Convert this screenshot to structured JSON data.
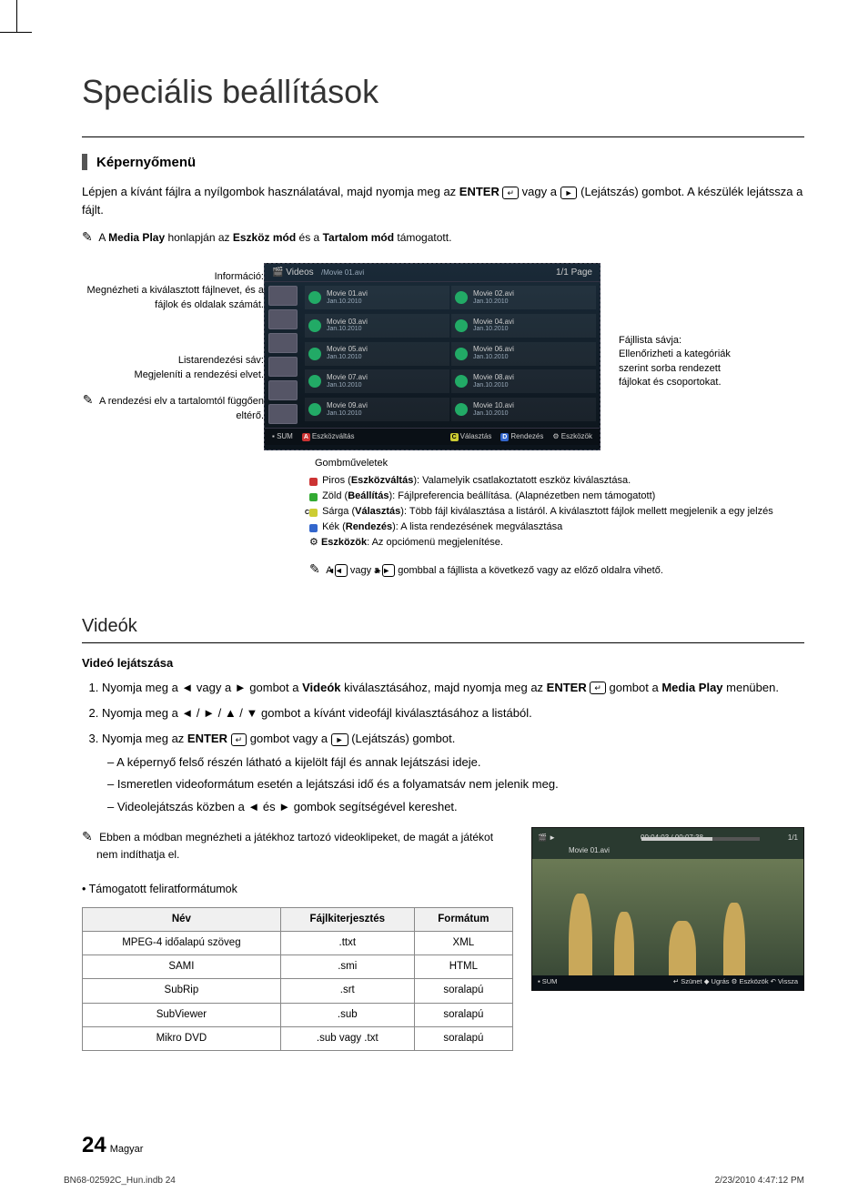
{
  "title": "Speciális beállítások",
  "section1_heading": "Képernyőmenü",
  "intro_text_a": "Lépjen a kívánt fájlra a nyílgombok használatával, majd nyomja meg az ",
  "intro_enter": "ENTER",
  "intro_text_b": " vagy a ",
  "intro_play_label": "►",
  "intro_text_c": " (Lejátszás) gombot. A készülék lejátssza a fájlt.",
  "note1_pre": "A ",
  "note1_mp": "Media Play",
  "note1_mid": " honlapján az ",
  "note1_em": "Eszköz mód",
  "note1_and": " és a ",
  "note1_tm": "Tartalom mód",
  "note1_post": " támogatott.",
  "callout_info_t": "Információ:",
  "callout_info_d": "Megnézheti a kiválasztott fájlnevet, és a fájlok és oldalak számát.",
  "callout_sort_t": "Listarendezési sáv:",
  "callout_sort_d": "Megjeleníti a rendezési elvet.",
  "callout_sort_note": "A rendezési elv a tartalomtól függően eltérő.",
  "callout_right_t": "Fájllista sávja:",
  "callout_right_d": "Ellenőrizheti a kategóriák szerint sorba rendezett fájlokat és csoportokat.",
  "ss_tab": "Videos",
  "ss_path": "/Movie 01.avi",
  "ss_page": "1/1 Page",
  "movies": [
    {
      "n": "Movie 01.avi",
      "d": "Jan.10.2010"
    },
    {
      "n": "Movie 02.avi",
      "d": "Jan.10.2010"
    },
    {
      "n": "Movie 03.avi",
      "d": "Jan.10.2010"
    },
    {
      "n": "Movie 04.avi",
      "d": "Jan.10.2010"
    },
    {
      "n": "Movie 05.avi",
      "d": "Jan.10.2010"
    },
    {
      "n": "Movie 06.avi",
      "d": "Jan.10.2010"
    },
    {
      "n": "Movie 07.avi",
      "d": "Jan.10.2010"
    },
    {
      "n": "Movie 08.avi",
      "d": "Jan.10.2010"
    },
    {
      "n": "Movie 09.avi",
      "d": "Jan.10.2010"
    },
    {
      "n": "Movie 10.avi",
      "d": "Jan.10.2010"
    }
  ],
  "ssf_sum": "SUM",
  "ssf_a": "Eszközváltás",
  "ssf_c": "Választás",
  "ssf_d": "Rendezés",
  "ssf_tools": "Eszközök",
  "ops_title": "Gombműveletek",
  "op_a_pre": "Piros (",
  "op_a_b": "Eszközváltás",
  "op_a_post": "): Valamelyik csatlakoztatott eszköz kiválasztása.",
  "op_b_pre": "Zöld (",
  "op_b_b": "Beállítás",
  "op_b_post": "): Fájlpreferencia beállítása. (Alapnézetben nem támogatott)",
  "op_c_pre": "Sárga (",
  "op_c_b": "Választás",
  "op_c_post": "): Több fájl kiválasztása a listáról. A kiválasztott fájlok mellett megjelenik a egy jelzés",
  "op_d_pre": "Kék (",
  "op_d_b": "Rendezés",
  "op_d_post": "): A lista rendezésének megválasztása",
  "op_t_b": "Eszközök",
  "op_t_post": ": Az opciómenü megjelenítése.",
  "pagenote_pre": "A ",
  "pagenote_mid": " vagy a ",
  "pagenote_post": " gombbal a fájllista a következő vagy az előző oldalra vihető.",
  "videos_h": "Videók",
  "playback_h": "Videó lejátszása",
  "step1_a": "Nyomja meg a ◄ vagy a ► gombot a ",
  "step1_b": "Videók",
  "step1_c": " kiválasztásához, majd nyomja meg az ",
  "step1_d": "ENTER",
  "step1_e": " gombot a ",
  "step1_f": "Media Play",
  "step1_g": " menüben.",
  "step2": "Nyomja meg a ◄ / ► / ▲ / ▼ gombot a kívánt videofájl kiválasztásához a listából.",
  "step3_a": "Nyomja meg az ",
  "step3_b": "ENTER",
  "step3_c": " gombot vagy a ",
  "step3_d": "►",
  "step3_e": " (Lejátszás) gombot.",
  "s3_li1": "A képernyő felső részén látható a kijelölt fájl és annak lejátszási ideje.",
  "s3_li2": "Ismeretlen videoformátum esetén a lejátszási idő és a folyamatsáv nem jelenik meg.",
  "s3_li3": "Videolejátszás közben a ◄ és ► gombok segítségével kereshet.",
  "mode_note": "Ebben a módban megnézheti a játékhoz tartozó videoklipeket, de magát a játékot nem indíthatja el.",
  "subtitle_bullet": "Támogatott feliratformátumok",
  "tbl_h1": "Név",
  "tbl_h2": "Fájlkiterjesztés",
  "tbl_h3": "Formátum",
  "tbl": [
    [
      "MPEG-4 időalapú szöveg",
      ".ttxt",
      "XML"
    ],
    [
      "SAMI",
      ".smi",
      "HTML"
    ],
    [
      "SubRip",
      ".srt",
      "soralapú"
    ],
    [
      "SubViewer",
      ".sub",
      "soralapú"
    ],
    [
      "Mikro DVD",
      ".sub vagy .txt",
      "soralapú"
    ]
  ],
  "play_time": "00:04:03 / 00:07:38",
  "play_idx": "1/1",
  "play_name": "Movie 01.avi",
  "play_sum": "SUM",
  "play_pause": "Szünet",
  "play_jump": "Ugrás",
  "play_tools": "Eszközök",
  "play_back": "Vissza",
  "page_num": "24",
  "page_lang": "Magyar",
  "print_left": "BN68-02592C_Hun.indb   24",
  "print_right": "2/23/2010   4:47:12 PM"
}
